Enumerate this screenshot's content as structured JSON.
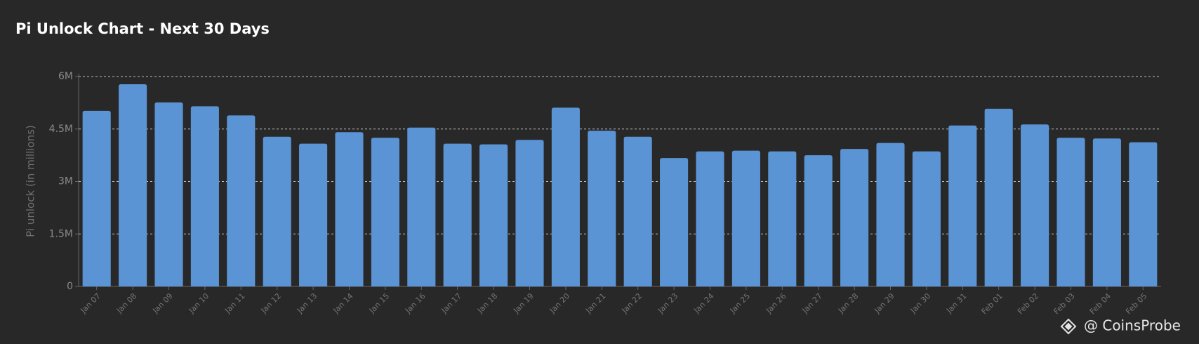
{
  "chart_data": {
    "type": "bar",
    "title": "Pi Unlock Chart - Next 30 Days",
    "y_label": "Pi unlock (in millions)",
    "watermark": "@ CoinsProbe",
    "categories": [
      "Jan 07",
      "Jan 08",
      "Jan 09",
      "Jan 10",
      "Jan 11",
      "Jan 12",
      "Jan 13",
      "Jan 14",
      "Jan 15",
      "Jan 16",
      "Jan 17",
      "Jan 18",
      "Jan 19",
      "Jan 20",
      "Jan 21",
      "Jan 22",
      "Jan 23",
      "Jan 24",
      "Jan 25",
      "Jan 26",
      "Jan 27",
      "Jan 28",
      "Jan 29",
      "Jan 30",
      "Jan 31",
      "Feb 01",
      "Feb 02",
      "Feb 03",
      "Feb 04",
      "Feb 05"
    ],
    "values": [
      5.02,
      5.78,
      5.26,
      5.15,
      4.89,
      4.28,
      4.08,
      4.41,
      4.25,
      4.54,
      4.08,
      4.06,
      4.19,
      5.11,
      4.45,
      4.28,
      3.67,
      3.86,
      3.88,
      3.86,
      3.75,
      3.93,
      4.1,
      3.86,
      4.6,
      5.08,
      4.63,
      4.25,
      4.23,
      4.12
    ],
    "color": "#5b94d4",
    "ylim": [
      0,
      6
    ],
    "yticks": [
      0,
      {
        "value": 1.5,
        "label": "1.5M"
      },
      {
        "value": 3,
        "label": "3M"
      },
      {
        "value": 4.5,
        "label": "4.5M"
      },
      {
        "value": 6,
        "label": "6M"
      }
    ],
    "grid": true
  }
}
